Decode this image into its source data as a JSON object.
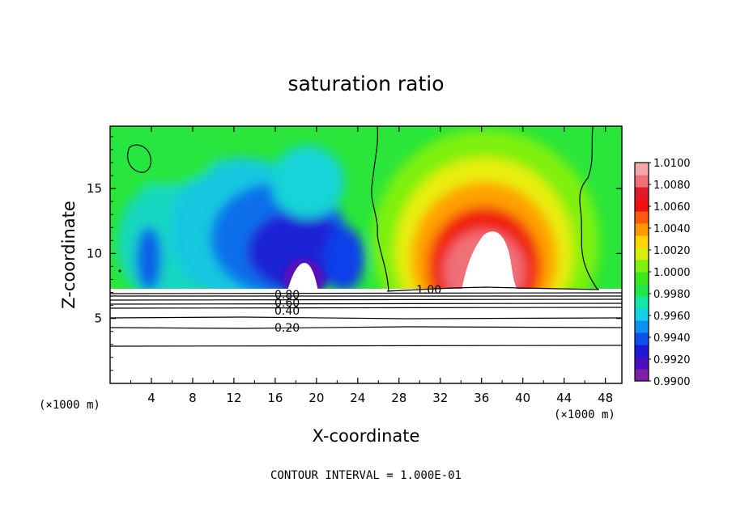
{
  "chart_data": {
    "type": "heatmap",
    "title": "saturation ratio",
    "xlabel": "X-coordinate",
    "ylabel": "Z-coordinate",
    "x_unit_label_left": "(×1000 m)",
    "x_unit_label_right": "(×1000 m)",
    "xlim": [
      0,
      49.6
    ],
    "ylim": [
      0,
      19.8
    ],
    "x_ticks": [
      4,
      8,
      12,
      16,
      20,
      24,
      28,
      32,
      36,
      40,
      44,
      48
    ],
    "y_ticks": [
      5,
      10,
      15
    ],
    "colorbar": {
      "range": [
        0.99,
        1.01
      ],
      "ticks": [
        "0.9900",
        "0.9920",
        "0.9940",
        "0.9960",
        "0.9980",
        "1.0000",
        "1.0020",
        "1.0040",
        "1.0060",
        "1.0080",
        "1.0100"
      ],
      "colors": [
        "#7e1fa6",
        "#4a0fbf",
        "#2018d8",
        "#1050ea",
        "#0c92f0",
        "#13d2e8",
        "#16e6a4",
        "#20e848",
        "#3be81c",
        "#7ff010",
        "#d8ee10",
        "#ffd400",
        "#ff9900",
        "#ff5a10",
        "#f21010",
        "#e01a28",
        "#f07078",
        "#f4a7a8"
      ]
    },
    "region_notes": {
      "blank_below": "white below z ≈ 7.2",
      "saturated_core": "white (above scale) region near x 33–40, z 9–12"
    },
    "contour_lines": [
      {
        "level": 1.0,
        "label": "1.00"
      },
      {
        "level": 0.8,
        "label": "0.80"
      },
      {
        "level": 0.6,
        "label": "0.60"
      },
      {
        "level": 0.4,
        "label": "0.40"
      },
      {
        "level": 0.2,
        "label": "0.20"
      }
    ],
    "contour_interval_text": "CONTOUR INTERVAL = 1.000E-01",
    "grid": false,
    "legend_placement": "right"
  }
}
